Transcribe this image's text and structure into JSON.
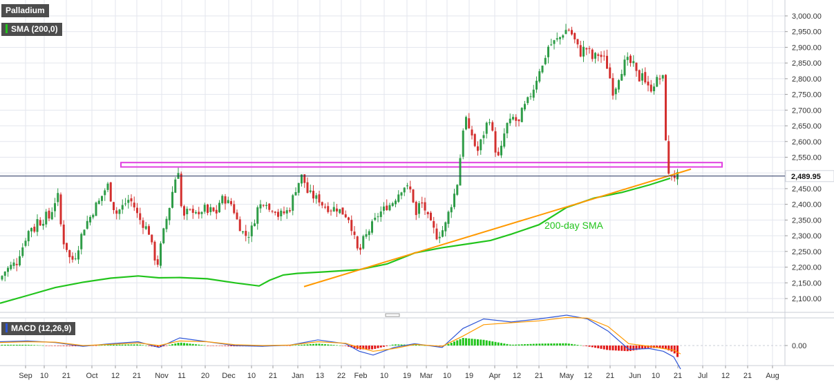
{
  "legend": {
    "instrument": "Palladium",
    "sma": "SMA (200,0)",
    "macd": "MACD (12,26,9)"
  },
  "annotation": "200-day SMA",
  "last_price_label": "2,489.95",
  "colors": {
    "up_candle": "#2e9c47",
    "down_candle": "#d3302f",
    "sma": "#22c41c",
    "trendline": "#ff9900",
    "resistance_zone": "#e040e0",
    "macd_line": "#2e55d6",
    "signal_line": "#ff9900",
    "hist_up": "#22c41c",
    "hist_down": "#e21a1a",
    "grid": "#e3e6ee",
    "axis_text": "#333333",
    "price_line": "#1f2d5a"
  },
  "chart_data": [
    {
      "type": "candlestick",
      "title": "Palladium",
      "xlabel": "",
      "ylabel": "",
      "x_tick_labels": [
        "Sep",
        "10",
        "21",
        "Oct",
        "12",
        "21",
        "Nov",
        "11",
        "20",
        "Dec",
        "10",
        "21",
        "Jan",
        "13",
        "22",
        "Feb",
        "10",
        "19",
        "Mar",
        "10",
        "19",
        "Apr",
        "12",
        "21",
        "May",
        "12",
        "21",
        "Jun",
        "10",
        "21",
        "Jul",
        "12",
        "21",
        "Aug"
      ],
      "y_ticks": [
        2100,
        2150,
        2200,
        2250,
        2300,
        2350,
        2400,
        2450,
        2500,
        2550,
        2600,
        2650,
        2700,
        2750,
        2800,
        2850,
        2900,
        2950,
        3000
      ],
      "y_tick_labels": [
        "2,100.00",
        "2,150.00",
        "2,200.00",
        "2,250.00",
        "2,300.00",
        "2,350.00",
        "2,400.00",
        "2,450.00",
        "2,500.00",
        "2,550.00",
        "2,600.00",
        "2,650.00",
        "2,700.00",
        "2,750.00",
        "2,800.00",
        "2,850.00",
        "2,900.00",
        "2,950.00",
        "3,000.00"
      ],
      "ylim": [
        2070,
        3025
      ],
      "grid": true,
      "series": [
        {
          "name": "Palladium",
          "kind": "price_close_path",
          "x": [
            0,
            6,
            14,
            20,
            22,
            26,
            32,
            38,
            45,
            50,
            54,
            60,
            66,
            72,
            78,
            84,
            90,
            96,
            102,
            108,
            114,
            120,
            126,
            132,
            138,
            144,
            150,
            156,
            162,
            168,
            174,
            180,
            186,
            192,
            198,
            204,
            210,
            216,
            222,
            228,
            234,
            240,
            246,
            252,
            258,
            264,
            270,
            276,
            282,
            288,
            294,
            300,
            306,
            312,
            318,
            324,
            330,
            336,
            342,
            348,
            354,
            360,
            366,
            372,
            378,
            384,
            390,
            396,
            402,
            408,
            414,
            420,
            426,
            432,
            438,
            444,
            450,
            456,
            462,
            468,
            474,
            480,
            486,
            492,
            498,
            504,
            510,
            516,
            520,
            524,
            530,
            536,
            542,
            548,
            554,
            560,
            566,
            572,
            578,
            584,
            590,
            596,
            602,
            608,
            614,
            620,
            626,
            632,
            638,
            644,
            650,
            656,
            662,
            666,
            670,
            674,
            678,
            684,
            690,
            696,
            702,
            708,
            714,
            720,
            726,
            732,
            738,
            744,
            750,
            756,
            762,
            768,
            774,
            780,
            786,
            792,
            798,
            804,
            810,
            816,
            822,
            828,
            834,
            840,
            846,
            852,
            858,
            864,
            870,
            876,
            882,
            888,
            894,
            900,
            906,
            912,
            918,
            924,
            930,
            936,
            942,
            948,
            954,
            960,
            966,
            970,
            974,
            978,
            982
          ],
          "values": [
            2160,
            2185,
            2200,
            2210,
            2190,
            2235,
            2260,
            2300,
            2330,
            2320,
            2350,
            2340,
            2365,
            2355,
            2405,
            2425,
            2290,
            2265,
            2220,
            2230,
            2270,
            2320,
            2345,
            2365,
            2395,
            2410,
            2440,
            2460,
            2405,
            2370,
            2385,
            2400,
            2415,
            2405,
            2370,
            2345,
            2330,
            2310,
            2240,
            2210,
            2285,
            2345,
            2400,
            2470,
            2510,
            2345,
            2375,
            2375,
            2390,
            2355,
            2395,
            2370,
            2385,
            2365,
            2410,
            2420,
            2405,
            2400,
            2355,
            2325,
            2300,
            2305,
            2330,
            2385,
            2400,
            2420,
            2380,
            2395,
            2365,
            2370,
            2375,
            2390,
            2440,
            2470,
            2495,
            2440,
            2430,
            2420,
            2415,
            2395,
            2390,
            2385,
            2390,
            2380,
            2370,
            2360,
            2320,
            2260,
            2240,
            2280,
            2300,
            2325,
            2345,
            2370,
            2380,
            2395,
            2400,
            2420,
            2440,
            2460,
            2450,
            2440,
            2360,
            2410,
            2390,
            2350,
            2325,
            2300,
            2310,
            2330,
            2380,
            2420,
            2470,
            2550,
            2640,
            2680,
            2630,
            2620,
            2560,
            2600,
            2640,
            2680,
            2610,
            2540,
            2580,
            2650,
            2660,
            2680,
            2650,
            2700,
            2720,
            2750,
            2780,
            2830,
            2840,
            2900,
            2910,
            2920,
            2930,
            2950,
            2960,
            2940,
            2910,
            2880,
            2900,
            2890,
            2860,
            2880,
            2870,
            2860,
            2810,
            2750,
            2800,
            2830,
            2860,
            2850,
            2840,
            2790,
            2830,
            2770,
            2770,
            2790,
            2800,
            2800,
            2480,
            2500,
            2490,
            2490,
            2489.95
          ]
        },
        {
          "name": "200-day SMA",
          "kind": "line",
          "x": [
            0,
            40,
            80,
            120,
            160,
            200,
            230,
            260,
            300,
            340,
            375,
            390,
            410,
            430,
            470,
            520,
            560,
            600,
            640,
            680,
            710,
            740,
            780,
            820,
            860,
            900,
            940,
            970
          ],
          "values": [
            2085,
            2110,
            2135,
            2152,
            2165,
            2172,
            2166,
            2167,
            2163,
            2150,
            2140,
            2158,
            2175,
            2180,
            2185,
            2192,
            2210,
            2245,
            2262,
            2275,
            2285,
            2305,
            2335,
            2390,
            2420,
            2438,
            2462,
            2483
          ]
        },
        {
          "name": "trendline",
          "kind": "line",
          "x": [
            440,
            1000
          ],
          "values": [
            2138,
            2512
          ]
        },
        {
          "name": "resistance",
          "kind": "zone",
          "x": [
            175,
            1045
          ],
          "values": [
            2519,
            2533
          ]
        }
      ]
    },
    {
      "type": "bar_line",
      "title": "MACD (12,26,9)",
      "y_ticks": [
        0
      ],
      "y_tick_labels": [
        "0.00"
      ],
      "ylim": [
        -70,
        90
      ],
      "series": [
        {
          "name": "macd",
          "kind": "line",
          "x": [
            0,
            40,
            80,
            120,
            160,
            200,
            230,
            260,
            300,
            340,
            380,
            420,
            460,
            500,
            520,
            540,
            570,
            600,
            640,
            670,
            700,
            740,
            780,
            820,
            850,
            880,
            910,
            940,
            960,
            975,
            985
          ],
          "values": [
            10,
            12,
            8,
            -2,
            5,
            10,
            -5,
            20,
            10,
            0,
            -2,
            1,
            15,
            5,
            -15,
            -25,
            -5,
            5,
            -5,
            45,
            70,
            62,
            70,
            80,
            70,
            38,
            -10,
            -8,
            -15,
            -30,
            -62
          ]
        },
        {
          "name": "signal",
          "kind": "line",
          "x": [
            0,
            40,
            80,
            120,
            160,
            200,
            230,
            260,
            300,
            340,
            380,
            420,
            460,
            500,
            520,
            540,
            570,
            600,
            640,
            670,
            700,
            740,
            780,
            820,
            850,
            880,
            910,
            940,
            960,
            975,
            985
          ],
          "values": [
            8,
            10,
            9,
            0,
            3,
            7,
            0,
            12,
            10,
            2,
            0,
            1,
            10,
            6,
            -5,
            -15,
            -8,
            3,
            -2,
            25,
            55,
            60,
            65,
            74,
            72,
            50,
            5,
            -2,
            -8,
            -12,
            -22
          ]
        }
      ]
    }
  ]
}
